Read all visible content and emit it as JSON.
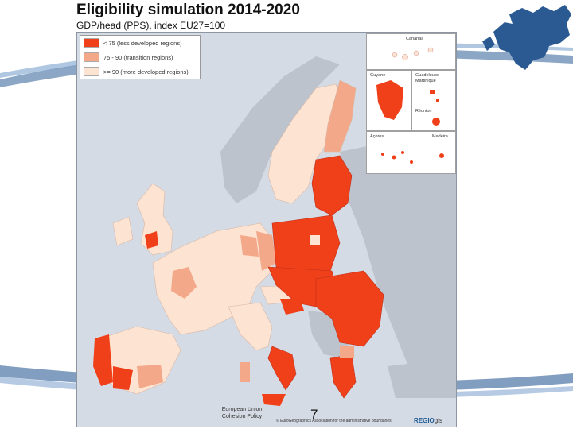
{
  "slide": {
    "title": "Eligibility simulation 2014-2020",
    "subtitle": "GDP/head (PPS), index EU27=100",
    "page_number": "7",
    "footer_line1": "European Union",
    "footer_line2": "Cohesion Policy",
    "copyright": "© EuroGeographics Association for the administrative boundaries",
    "logo_main": "REGIO",
    "logo_suffix": "gis"
  },
  "legend": {
    "items": [
      {
        "label": "< 75 (less developed regions)",
        "color": "#f0401a"
      },
      {
        "label": "75 - 90 (transition regions)",
        "color": "#f4a88a"
      },
      {
        "label": ">= 90 (more developed regions)",
        "color": "#fde3d2"
      }
    ]
  },
  "insets": {
    "canarias": "Canarias",
    "guyane": "Guyane",
    "guadeloupe": "Guadeloupe",
    "martinique": "Martinique",
    "reunion": "Réunion",
    "acores": "Açores",
    "madeira": "Madeira"
  },
  "colors": {
    "less_developed": "#f0401a",
    "transition": "#f4a88a",
    "more_developed": "#fde3d2",
    "non_eu": "#bcc3cc",
    "sea": "#d5dbe4",
    "decor_blue": "#1f4f86"
  }
}
